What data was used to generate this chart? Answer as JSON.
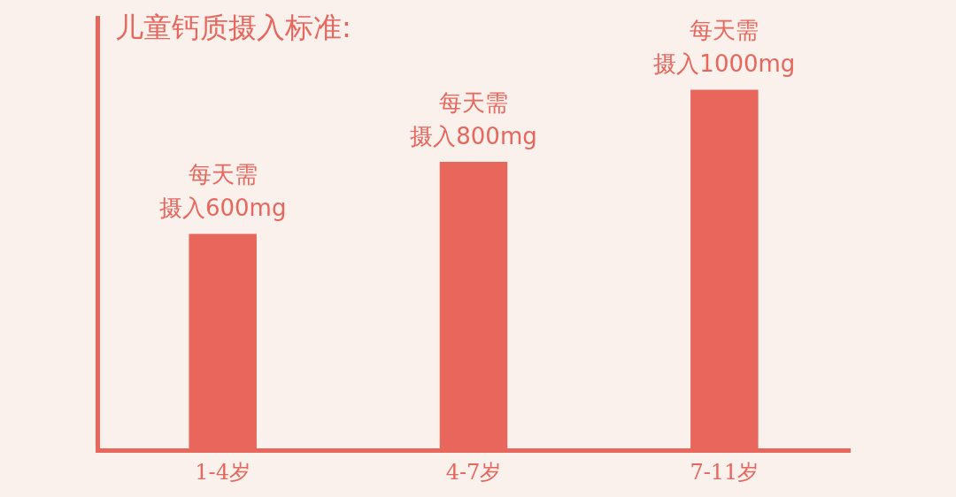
{
  "chart_data": {
    "type": "bar",
    "title": "儿童钙质摄入标准:",
    "categories": [
      "1-4岁",
      "4-7岁",
      "7-11岁"
    ],
    "values": [
      600,
      800,
      1000
    ],
    "value_labels": [
      "每天需摄入600mg",
      "每天需摄入800mg",
      "每天需摄入1000mg"
    ],
    "color": "#e8665c",
    "tick_labels": "x",
    "grid": false,
    "legend": false
  }
}
